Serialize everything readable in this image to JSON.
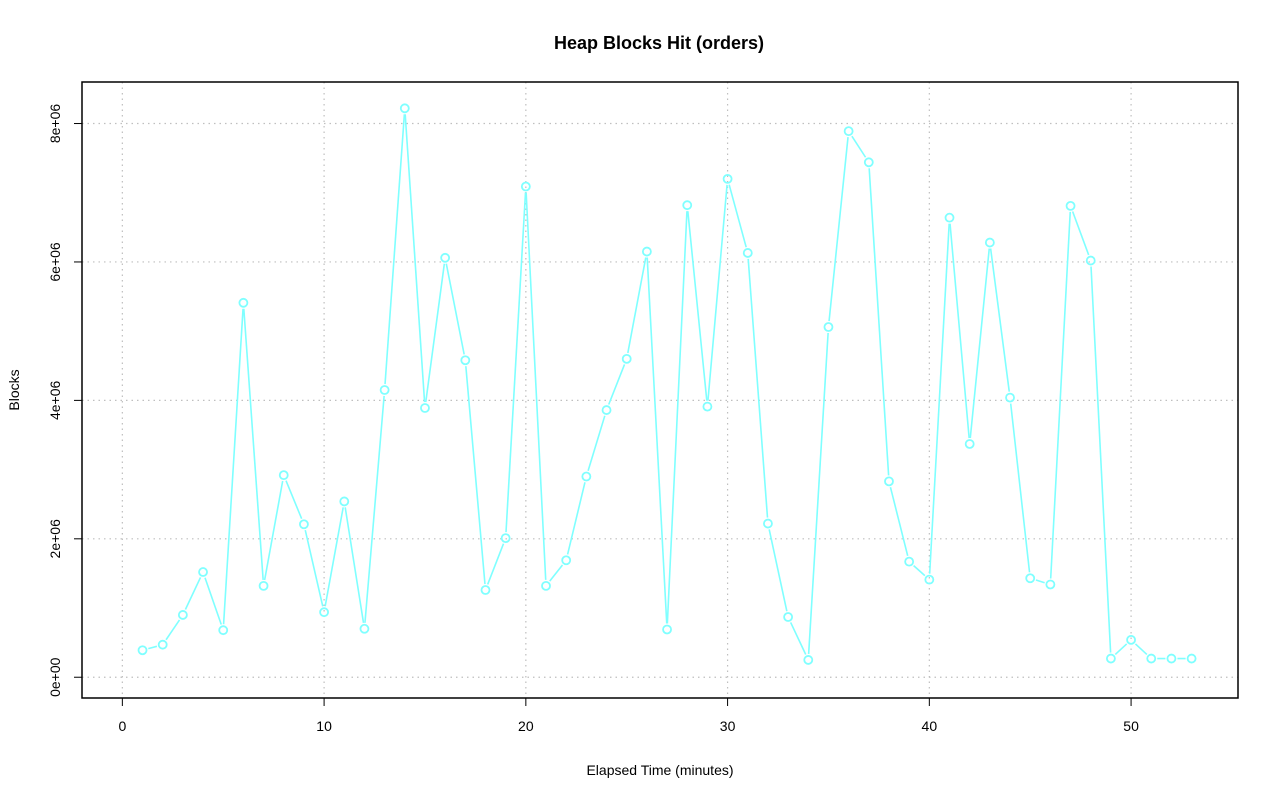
{
  "chart_data": {
    "type": "line",
    "title": "Heap Blocks Hit (orders)",
    "xlabel": "Elapsed Time (minutes)",
    "ylabel": "Blocks",
    "xlim": [
      -2,
      55.3
    ],
    "ylim": [
      -300000,
      8600000
    ],
    "xticks": [
      0,
      10,
      20,
      30,
      40,
      50
    ],
    "xtick_labels": [
      "0",
      "10",
      "20",
      "30",
      "40",
      "50"
    ],
    "yticks": [
      0,
      2000000,
      4000000,
      6000000,
      8000000
    ],
    "ytick_labels": [
      "0e+00",
      "2e+06",
      "4e+06",
      "6e+06",
      "8e+06"
    ],
    "grid": true,
    "grid_style": "dotted",
    "series_color": "#7FFFFF",
    "series": [
      {
        "x": [
          1,
          2,
          3,
          4,
          5,
          6,
          7,
          8,
          9,
          10,
          11,
          12,
          13,
          14,
          15,
          16,
          17,
          18,
          19,
          20,
          21,
          22,
          23,
          24,
          25,
          26,
          27,
          28,
          29,
          30,
          31,
          32,
          33,
          34,
          35,
          36,
          37,
          38,
          39,
          40,
          41,
          42,
          43,
          44,
          45,
          46,
          47,
          48,
          49,
          50,
          51,
          52,
          53
        ],
        "values": [
          390000,
          470000,
          900000,
          1520000,
          680000,
          5410000,
          1320000,
          2920000,
          2210000,
          940000,
          2540000,
          700000,
          4150000,
          8220000,
          3890000,
          6060000,
          4580000,
          1260000,
          2010000,
          7090000,
          1320000,
          1690000,
          2900000,
          3860000,
          4600000,
          6150000,
          690000,
          6820000,
          3910000,
          7200000,
          6130000,
          2220000,
          870000,
          250000,
          5060000,
          7890000,
          7440000,
          2830000,
          1670000,
          1410000,
          6640000,
          3370000,
          6280000,
          4040000,
          1430000,
          1340000,
          6810000,
          6020000,
          270000,
          540000,
          270000,
          270000,
          270000
        ]
      }
    ]
  }
}
